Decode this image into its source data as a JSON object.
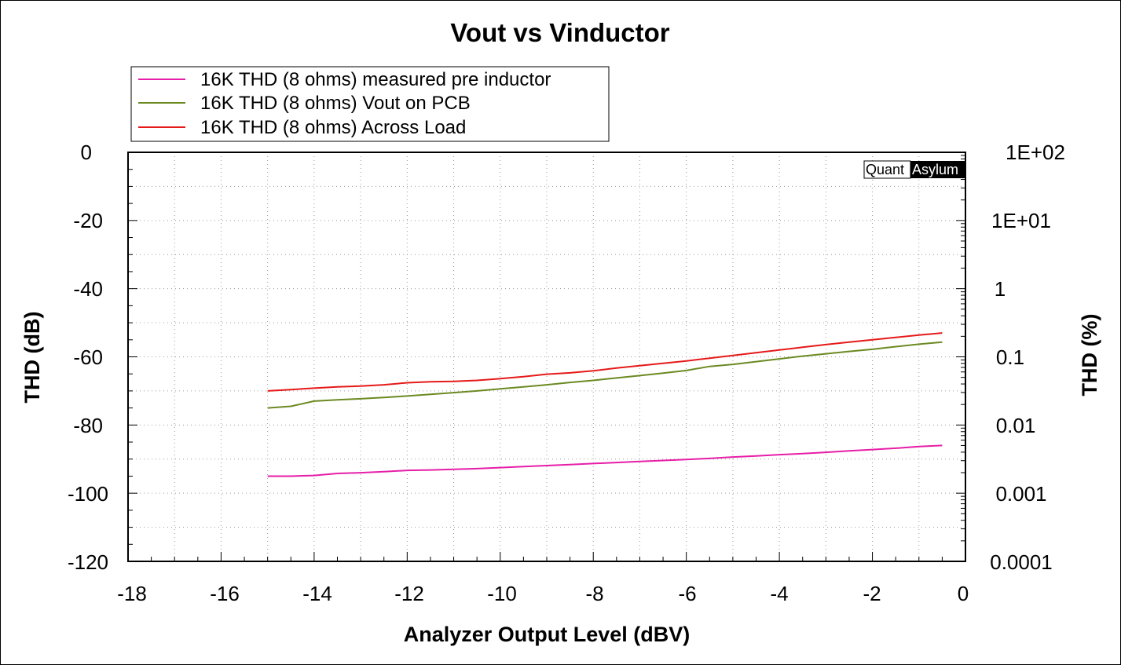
{
  "chart_data": {
    "type": "line",
    "title": "Vout vs Vinductor",
    "xlabel": "Analyzer Output Level (dBV)",
    "ylabel": "THD (dB)",
    "ylabel_right": "THD (%)",
    "xlim": [
      -18,
      0
    ],
    "ylim": [
      -120,
      0
    ],
    "x_ticks": [
      "-18",
      "-16",
      "-14",
      "-12",
      "-10",
      "-8",
      "-6",
      "-4",
      "-2",
      "0"
    ],
    "y_ticks": [
      "0",
      "-20",
      "-40",
      "-60",
      "-80",
      "-100",
      "-120"
    ],
    "y_right_ticks": [
      "1E+02",
      "1E+01",
      "1",
      "0.1",
      "0.01",
      "0.001",
      "0.0001"
    ],
    "y_right_scale": "log",
    "grid": true,
    "legend_position": "top-left",
    "watermark": {
      "left": "Quant",
      "right": "Asylum"
    },
    "series": [
      {
        "name": "16K THD (8 ohms) measured pre inductor",
        "color": "#e61ea8",
        "x": [
          -15,
          -14.5,
          -14,
          -13.5,
          -13,
          -12.5,
          -12,
          -11.5,
          -11,
          -10.5,
          -10,
          -9.5,
          -9,
          -8.5,
          -8,
          -7.5,
          -7,
          -6.5,
          -6,
          -5.5,
          -5,
          -4.5,
          -4,
          -3.5,
          -3,
          -2.5,
          -2,
          -1.5,
          -1,
          -0.5
        ],
        "values": [
          -95.0,
          -95.0,
          -94.8,
          -94.2,
          -94.0,
          -93.7,
          -93.3,
          -93.2,
          -93.0,
          -92.8,
          -92.5,
          -92.2,
          -91.9,
          -91.6,
          -91.3,
          -91.0,
          -90.7,
          -90.4,
          -90.1,
          -89.8,
          -89.4,
          -89.1,
          -88.7,
          -88.4,
          -88.0,
          -87.6,
          -87.2,
          -86.8,
          -86.3,
          -86.0
        ]
      },
      {
        "name": "16K THD (8 ohms) Vout on PCB",
        "color": "#6b8a22",
        "x": [
          -15,
          -14.5,
          -14,
          -13.5,
          -13,
          -12.5,
          -12,
          -11.5,
          -11,
          -10.5,
          -10,
          -9.5,
          -9,
          -8.5,
          -8,
          -7.5,
          -7,
          -6.5,
          -6,
          -5.5,
          -5,
          -4.5,
          -4,
          -3.5,
          -3,
          -2.5,
          -2,
          -1.5,
          -1,
          -0.5
        ],
        "values": [
          -75.0,
          -74.5,
          -73.0,
          -72.6,
          -72.3,
          -71.9,
          -71.5,
          -71.0,
          -70.5,
          -70.0,
          -69.4,
          -68.8,
          -68.2,
          -67.5,
          -66.9,
          -66.2,
          -65.5,
          -64.8,
          -64.0,
          -62.8,
          -62.2,
          -61.4,
          -60.6,
          -59.8,
          -59.1,
          -58.4,
          -57.8,
          -57.0,
          -56.3,
          -55.7
        ]
      },
      {
        "name": "16K THD (8 ohms) Across Load",
        "color": "#e61919",
        "x": [
          -15,
          -14.5,
          -14,
          -13.5,
          -13,
          -12.5,
          -12,
          -11.5,
          -11,
          -10.5,
          -10,
          -9.5,
          -9,
          -8.5,
          -8,
          -7.5,
          -7,
          -6.5,
          -6,
          -5.5,
          -5,
          -4.5,
          -4,
          -3.5,
          -3,
          -2.5,
          -2,
          -1.5,
          -1,
          -0.5
        ],
        "values": [
          -70.0,
          -69.6,
          -69.2,
          -68.8,
          -68.6,
          -68.2,
          -67.6,
          -67.3,
          -67.2,
          -66.9,
          -66.4,
          -65.8,
          -65.1,
          -64.7,
          -64.1,
          -63.3,
          -62.6,
          -61.9,
          -61.2,
          -60.4,
          -59.6,
          -58.8,
          -58.0,
          -57.2,
          -56.4,
          -55.7,
          -55.0,
          -54.3,
          -53.6,
          -53.0
        ]
      }
    ]
  }
}
